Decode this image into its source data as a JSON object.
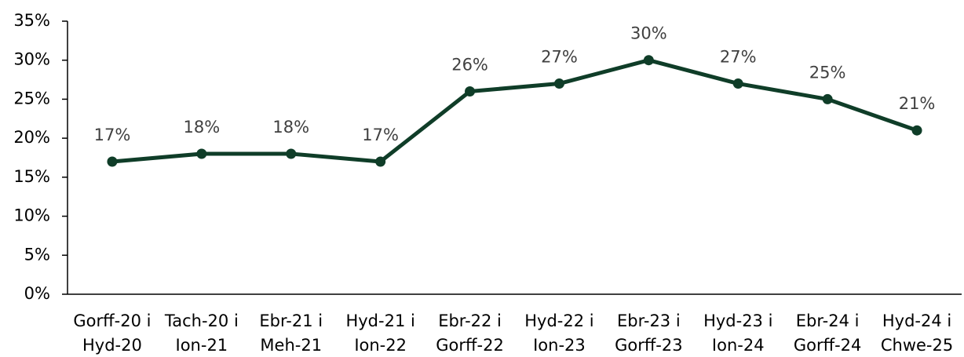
{
  "chart_data": {
    "type": "line",
    "categories": [
      "Gorff-20 i Hyd-20",
      "Tach-20 i Ion-21",
      "Ebr-21 i Meh-21",
      "Hyd-21 i Ion-22",
      "Ebr-22 i Gorff-22",
      "Hyd-22 i Ion-23",
      "Ebr-23 i Gorff-23",
      "Hyd-23 i Ion-24",
      "Ebr-24 i Gorff-24",
      "Hyd-24 i Chwe-25"
    ],
    "series": [
      {
        "color": "#0f3d28",
        "values": [
          17,
          18,
          18,
          17,
          26,
          27,
          30,
          27,
          25,
          21
        ],
        "value_labels": [
          "17%",
          "18%",
          "18%",
          "17%",
          "26%",
          "27%",
          "30%",
          "27%",
          "25%",
          "21%"
        ]
      }
    ],
    "ylim": [
      0,
      35
    ],
    "yticks": [
      {
        "value": 0,
        "label": "0%"
      },
      {
        "value": 5,
        "label": "5%"
      },
      {
        "value": 10,
        "label": "10%"
      },
      {
        "value": 15,
        "label": "15%"
      },
      {
        "value": 20,
        "label": "20%"
      },
      {
        "value": 25,
        "label": "25%"
      },
      {
        "value": 30,
        "label": "30%"
      },
      {
        "value": 35,
        "label": "35%"
      }
    ],
    "grid": false
  }
}
